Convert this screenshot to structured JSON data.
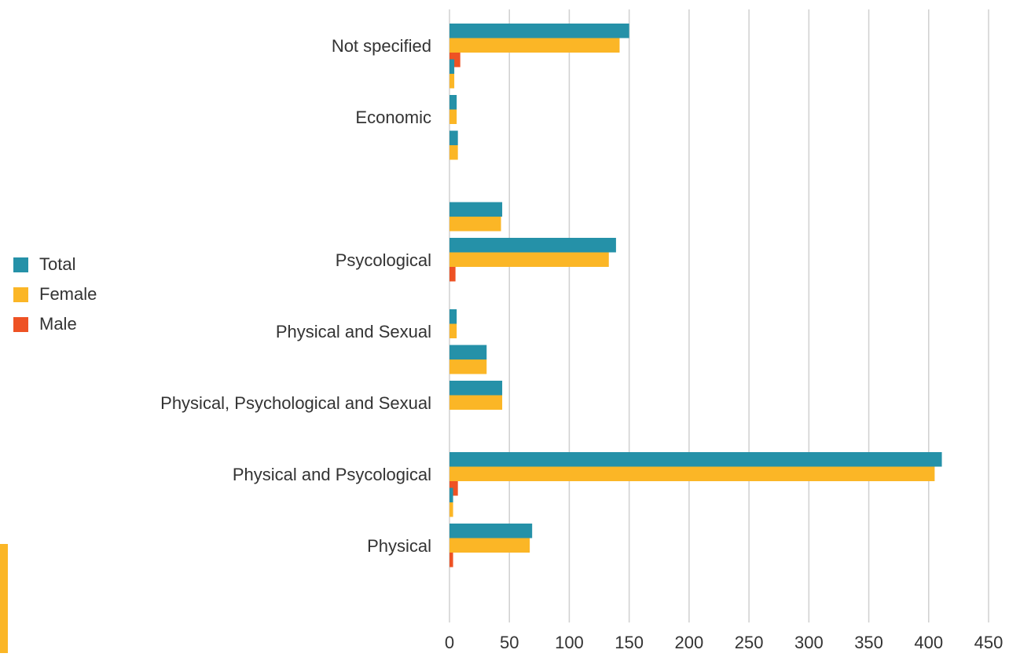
{
  "chart_data": {
    "type": "bar",
    "orientation": "horizontal",
    "xlim": [
      0,
      450
    ],
    "x_ticks": [
      "0",
      "50",
      "100",
      "150",
      "200",
      "250",
      "300",
      "350",
      "400",
      "450"
    ],
    "grid": "vertical",
    "legend_position": "left",
    "series": [
      {
        "name": "Total",
        "color": "#2591a8"
      },
      {
        "name": "Female",
        "color": "#fbb626"
      },
      {
        "name": "Male",
        "color": "#ee5224"
      }
    ],
    "bars": [
      {
        "label": "Not specified",
        "Total": 150,
        "Female": 142,
        "Male": 9
      },
      {
        "label": "",
        "Total": 4,
        "Female": 4,
        "Male": 0
      },
      {
        "label": "Economic",
        "Total": 6,
        "Female": 6,
        "Male": 0
      },
      {
        "label": "",
        "Total": 7,
        "Female": 7,
        "Male": 0
      },
      {
        "label": "",
        "Total": 0,
        "Female": 0,
        "Male": 0
      },
      {
        "label": "",
        "Total": 44,
        "Female": 43,
        "Male": 0
      },
      {
        "label": "Psycological",
        "Total": 139,
        "Female": 133,
        "Male": 5
      },
      {
        "label": "",
        "Total": 0,
        "Female": 0,
        "Male": 0
      },
      {
        "label": "Physical and Sexual",
        "Total": 6,
        "Female": 6,
        "Male": 0
      },
      {
        "label": "",
        "Total": 31,
        "Female": 31,
        "Male": 0
      },
      {
        "label": "Physical, Psychological and Sexual",
        "Total": 44,
        "Female": 44,
        "Male": 0
      },
      {
        "label": "",
        "Total": 0,
        "Female": 0,
        "Male": 0
      },
      {
        "label": "Physical and Psycological",
        "Total": 411,
        "Female": 405,
        "Male": 7
      },
      {
        "label": "",
        "Total": 3,
        "Female": 3,
        "Male": 0
      },
      {
        "label": "Physical",
        "Total": 69,
        "Female": 67,
        "Male": 3
      }
    ]
  },
  "colors": {
    "accent_bar": "#fbb626",
    "grid": "#d0d0d0"
  }
}
